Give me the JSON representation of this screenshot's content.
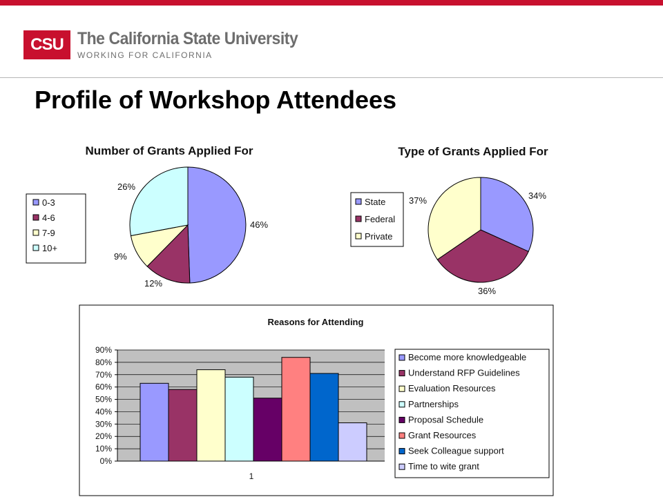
{
  "header": {
    "logo_mark": "CSU",
    "logo_name": "The California State University",
    "logo_tagline": "WORKING FOR CALIFORNIA"
  },
  "page": {
    "title": "Profile of Workshop Attendees"
  },
  "colors": {
    "brand_red": "#c8102e",
    "header_text": "#6d6d6d"
  },
  "chart_data": [
    {
      "type": "pie",
      "title": "Number of Grants Applied For",
      "categories": [
        "0-3",
        "4-6",
        "7-9",
        "10+"
      ],
      "values": [
        46,
        12,
        9,
        26
      ],
      "value_labels": [
        "46%",
        "12%",
        "9%",
        "26%"
      ],
      "colors": [
        "#9999ff",
        "#993366",
        "#ffffcc",
        "#ccffff"
      ],
      "legend": "left"
    },
    {
      "type": "pie",
      "title": "Type of Grants Applied For",
      "categories": [
        "State",
        "Federal",
        "Private"
      ],
      "values": [
        34,
        36,
        37
      ],
      "value_labels": [
        "34%",
        "36%",
        "37%"
      ],
      "colors": [
        "#9999ff",
        "#993366",
        "#ffffcc"
      ],
      "legend": "left"
    },
    {
      "type": "bar",
      "title": "Reasons for Attending",
      "x": [
        "1"
      ],
      "ylim": [
        0,
        90
      ],
      "yticks": [
        "0%",
        "10%",
        "20%",
        "30%",
        "40%",
        "50%",
        "60%",
        "70%",
        "80%",
        "90%"
      ],
      "grid": true,
      "legend": "right",
      "series": [
        {
          "name": "Become more knowledgeable",
          "values": [
            63
          ],
          "color": "#9999ff"
        },
        {
          "name": "Understand RFP Guidelines",
          "values": [
            58
          ],
          "color": "#993366"
        },
        {
          "name": "Evaluation Resources",
          "values": [
            74
          ],
          "color": "#ffffcc"
        },
        {
          "name": "Partnerships",
          "values": [
            68
          ],
          "color": "#ccffff"
        },
        {
          "name": "Proposal Schedule",
          "values": [
            51
          ],
          "color": "#660066"
        },
        {
          "name": "Grant Resources",
          "values": [
            84
          ],
          "color": "#ff8080"
        },
        {
          "name": "Seek Colleague support",
          "values": [
            71
          ],
          "color": "#0066cc"
        },
        {
          "name": "Time to wite grant",
          "values": [
            31
          ],
          "color": "#ccccff"
        }
      ]
    }
  ]
}
